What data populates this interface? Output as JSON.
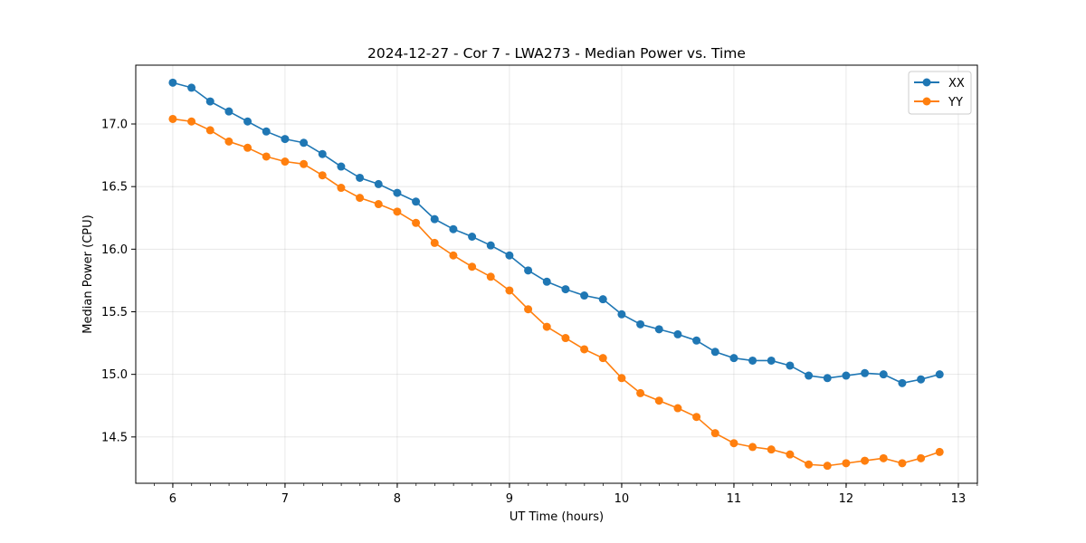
{
  "chart_data": {
    "type": "line",
    "title": "2024-12-27 - Cor 7 - LWA273 - Median Power vs. Time",
    "xlabel": "UT Time (hours)",
    "ylabel": "Median Power (CPU)",
    "xlim": [
      5.67,
      13.17
    ],
    "ylim": [
      14.13,
      17.47
    ],
    "x_ticks": [
      6,
      7,
      8,
      9,
      10,
      11,
      12,
      13
    ],
    "x_tick_labels": [
      "6",
      "7",
      "8",
      "9",
      "10",
      "11",
      "12",
      "13"
    ],
    "y_ticks": [
      14.5,
      15.0,
      15.5,
      16.0,
      16.5,
      17.0
    ],
    "y_tick_labels": [
      "14.5",
      "15.0",
      "15.5",
      "16.0",
      "16.5",
      "17.0"
    ],
    "grid": true,
    "legend_position": "top-right",
    "x": [
      6.0,
      6.1667,
      6.3333,
      6.5,
      6.6667,
      6.8333,
      7.0,
      7.1667,
      7.3333,
      7.5,
      7.6667,
      7.8333,
      8.0,
      8.1667,
      8.3333,
      8.5,
      8.6667,
      8.8333,
      9.0,
      9.1667,
      9.3333,
      9.5,
      9.6667,
      9.8333,
      10.0,
      10.1667,
      10.3333,
      10.5,
      10.6667,
      10.8333,
      11.0,
      11.1667,
      11.3333,
      11.5,
      11.6667,
      11.8333,
      12.0,
      12.1667,
      12.3333,
      12.5,
      12.6667,
      12.8333
    ],
    "series": [
      {
        "name": "XX",
        "color": "#1f77b4",
        "values": [
          17.33,
          17.29,
          17.18,
          17.1,
          17.02,
          16.94,
          16.88,
          16.85,
          16.76,
          16.66,
          16.57,
          16.52,
          16.45,
          16.38,
          16.24,
          16.16,
          16.1,
          16.03,
          15.95,
          15.83,
          15.74,
          15.68,
          15.63,
          15.6,
          15.48,
          15.4,
          15.36,
          15.32,
          15.27,
          15.18,
          15.13,
          15.11,
          15.11,
          15.07,
          14.99,
          14.97,
          14.99,
          15.01,
          15.0,
          14.93,
          14.96,
          15.0
        ]
      },
      {
        "name": "YY",
        "color": "#ff7f0e",
        "values": [
          17.04,
          17.02,
          16.95,
          16.86,
          16.81,
          16.74,
          16.7,
          16.68,
          16.59,
          16.49,
          16.41,
          16.36,
          16.3,
          16.21,
          16.05,
          15.95,
          15.86,
          15.78,
          15.67,
          15.52,
          15.38,
          15.29,
          15.2,
          15.13,
          14.97,
          14.85,
          14.79,
          14.73,
          14.66,
          14.53,
          14.45,
          14.42,
          14.4,
          14.36,
          14.28,
          14.27,
          14.29,
          14.31,
          14.33,
          14.29,
          14.33,
          14.38
        ]
      }
    ]
  }
}
